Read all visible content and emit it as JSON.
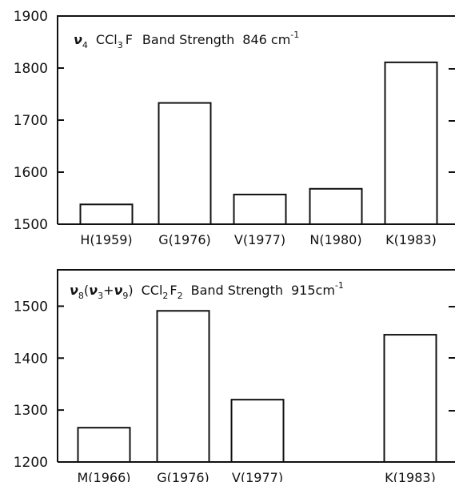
{
  "chart_data": [
    {
      "type": "bar",
      "title": "ν4 CCl3F Band Strength 846 cm-1",
      "title_parts": {
        "nu": "ν",
        "nu_sub": "4",
        "molecule_a": "CCl",
        "molecule_sub": "3",
        "molecule_b": "F",
        "text": "Band Strength",
        "wavenumber": "846 cm",
        "exponent": "-1"
      },
      "categories": [
        "H(1959)",
        "G(1976)",
        "V(1977)",
        "N(1980)",
        "K(1983)"
      ],
      "values": [
        1538,
        1733,
        1557,
        1568,
        1811
      ],
      "yticks": [
        "1500",
        "1600",
        "1700",
        "1800",
        "1900"
      ],
      "ylim": [
        1500,
        1900
      ],
      "xlabel": "",
      "ylabel": ""
    },
    {
      "type": "bar",
      "title": "ν8(ν3+ν9) CCl2F2 Band Strength 915cm-1",
      "title_parts": {
        "nu": "ν",
        "nu_sub": "8",
        "paren_open": "(",
        "nu2": "ν",
        "nu2_sub": "3",
        "plus": "+",
        "nu3": "ν",
        "nu3_sub": "9",
        "paren_close": ")",
        "molecule_a": "CCl",
        "molecule_sub": "2",
        "molecule_b": "F",
        "molecule_sub2": "2",
        "text": "Band Strength",
        "wavenumber": "915cm",
        "exponent": "-1"
      },
      "categories": [
        "M(1966)",
        "G(1976)",
        "V(1977)",
        "",
        "K(1983)"
      ],
      "values": [
        1266,
        1491,
        1320,
        null,
        1445
      ],
      "yticks": [
        "1200",
        "1300",
        "1400",
        "1500"
      ],
      "ylim": [
        1200,
        1570
      ],
      "xlabel": "",
      "ylabel": ""
    }
  ]
}
